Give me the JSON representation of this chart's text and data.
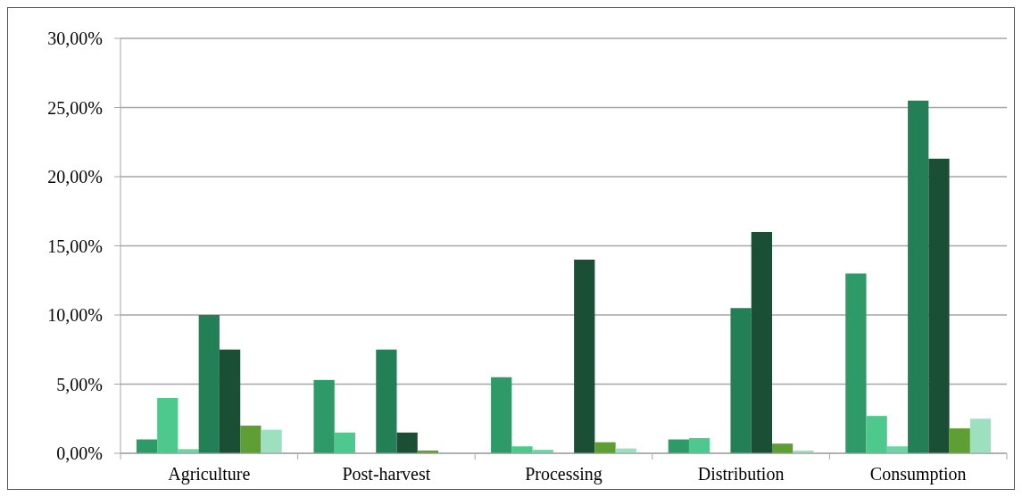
{
  "chart_data": {
    "type": "bar",
    "categories": [
      "Agriculture",
      "Post-harvest",
      "Processing",
      "Distribution",
      "Consumption"
    ],
    "series": [
      {
        "color": "#2e9a68",
        "values": [
          1.0,
          5.3,
          5.5,
          1.0,
          13.0
        ]
      },
      {
        "color": "#4ec98e",
        "values": [
          4.0,
          1.5,
          0.5,
          1.1,
          2.7
        ]
      },
      {
        "color": "#6fd3a4",
        "values": [
          0.3,
          0.0,
          0.25,
          0.0,
          0.5
        ]
      },
      {
        "color": "#237f55",
        "values": [
          10.0,
          7.5,
          0.0,
          10.5,
          25.5
        ]
      },
      {
        "color": "#1a4f35",
        "values": [
          7.5,
          1.5,
          14.0,
          16.0,
          21.3
        ]
      },
      {
        "color": "#5f9e32",
        "values": [
          2.0,
          0.2,
          0.8,
          0.7,
          1.8
        ]
      },
      {
        "color": "#9de0c0",
        "values": [
          1.7,
          null,
          0.35,
          0.2,
          2.5
        ]
      }
    ],
    "ylim": [
      0,
      30
    ],
    "yticks": [
      {
        "value": 0,
        "label": "0,00%"
      },
      {
        "value": 5,
        "label": "5,00%"
      },
      {
        "value": 10,
        "label": "10,00%"
      },
      {
        "value": 15,
        "label": "15,00%"
      },
      {
        "value": 20,
        "label": "20,00%"
      },
      {
        "value": 25,
        "label": "25,00%"
      },
      {
        "value": 30,
        "label": "30,00%"
      }
    ],
    "grid": "y"
  }
}
